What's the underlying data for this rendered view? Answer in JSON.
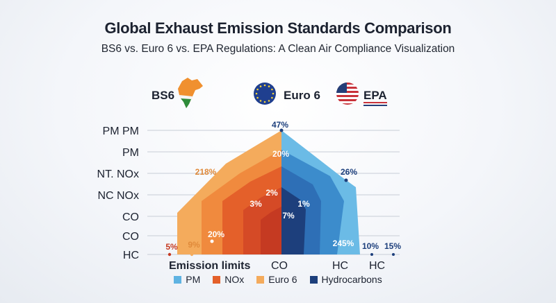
{
  "header": {
    "title": "Global Exhaust Emission Standards Comparison",
    "subtitle": "BS6 vs. Euro 6 vs. EPA Regulations: A Clean Air Compliance Visualization"
  },
  "standards": [
    {
      "name": "BS6",
      "icon": "india-map-icon"
    },
    {
      "name": "Euro 6",
      "icon": "eu-flag-icon"
    },
    {
      "name": "EPA",
      "icon": "us-flag-icon"
    }
  ],
  "colors": {
    "pm_light": "#5fb3e2",
    "pm_mid": "#3c8ccc",
    "pm_dark": "#2462a8",
    "hydrocarbons": "#1d3f7c",
    "euro6": "#f4ab5c",
    "nox_light": "#f08a3e",
    "nox": "#e4602a",
    "nox_dark": "#c53a22"
  },
  "chart_data": {
    "type": "area",
    "title": "Global Exhaust Emission Standards Comparison",
    "y_categories": [
      "PM PM",
      "PM",
      "NT. NOx",
      "NC NOx",
      "CO",
      "CO",
      "HC"
    ],
    "x_categories": [
      "Emission limits",
      "CO",
      "HC",
      "HC"
    ],
    "legend": [
      {
        "name": "PM",
        "color": "#5fb3e2"
      },
      {
        "name": "NOx",
        "color": "#e4602a"
      },
      {
        "name": "Euro 6",
        "color": "#f4ab5c"
      },
      {
        "name": "Hydrocarbons",
        "color": "#1d3f7c"
      }
    ],
    "annotations": [
      {
        "text": "47%",
        "color": "#1d3f7c"
      },
      {
        "text": "20%",
        "color": "#ffffff"
      },
      {
        "text": "218%",
        "color": "#e08a3a"
      },
      {
        "text": "26%",
        "color": "#1d3f7c"
      },
      {
        "text": "2%",
        "color": "#ffffff"
      },
      {
        "text": "3%",
        "color": "#ffffff"
      },
      {
        "text": "1%",
        "color": "#ffffff"
      },
      {
        "text": "7%",
        "color": "#ffffff"
      },
      {
        "text": "20%",
        "color": "#ffffff"
      },
      {
        "text": "245%",
        "color": "#ffffff"
      },
      {
        "text": "5%",
        "color": "#c53a22"
      },
      {
        "text": "9%",
        "color": "#e08a3a"
      },
      {
        "text": "10%",
        "color": "#1d3f7c"
      },
      {
        "text": "15%",
        "color": "#1d3f7c"
      }
    ]
  }
}
